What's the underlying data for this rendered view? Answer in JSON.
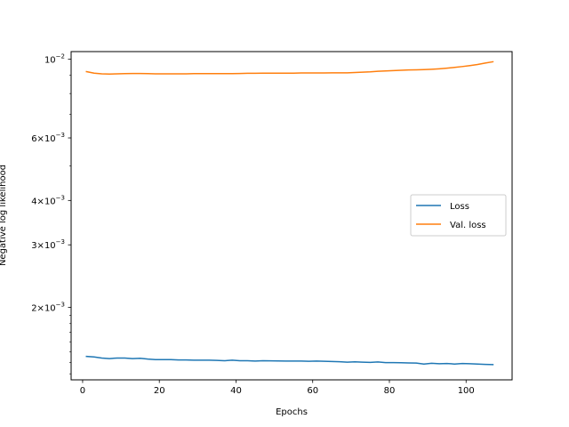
{
  "chart_data": {
    "type": "line",
    "title": "",
    "xlabel": "Epochs",
    "ylabel": "Negative log likelihood",
    "yscale": "log",
    "xlim": [
      -3,
      112
    ],
    "ylim": [
      0.00125,
      0.0105
    ],
    "grid": false,
    "legend_position": "center-right",
    "x_ticks": [
      0,
      20,
      40,
      60,
      80,
      100
    ],
    "x_tick_labels": [
      "0",
      "20",
      "40",
      "60",
      "80",
      "100"
    ],
    "y_ticks": [
      0.01,
      0.006,
      0.004,
      0.003,
      0.002
    ],
    "y_tick_labels": [
      {
        "base": "10",
        "exp": "−2"
      },
      {
        "mant": "6",
        "base": "10",
        "exp": "−3"
      },
      {
        "mant": "4",
        "base": "10",
        "exp": "−3"
      },
      {
        "mant": "3",
        "base": "10",
        "exp": "−3"
      },
      {
        "mant": "2",
        "base": "10",
        "exp": "−3"
      }
    ],
    "series": [
      {
        "name": "Loss",
        "color": "#1f77b4",
        "x": [
          1,
          3,
          5,
          7,
          9,
          11,
          13,
          15,
          17,
          19,
          21,
          23,
          25,
          27,
          29,
          31,
          33,
          35,
          37,
          39,
          41,
          43,
          45,
          47,
          49,
          51,
          53,
          55,
          57,
          59,
          61,
          63,
          65,
          67,
          69,
          71,
          73,
          75,
          77,
          79,
          81,
          83,
          85,
          87,
          89,
          91,
          93,
          95,
          97,
          99,
          101,
          103,
          105,
          107
        ],
        "values": [
          0.001455,
          0.00145,
          0.00144,
          0.001435,
          0.00144,
          0.00144,
          0.001435,
          0.001438,
          0.00143,
          0.001425,
          0.001425,
          0.001425,
          0.001422,
          0.001422,
          0.00142,
          0.00142,
          0.00142,
          0.001418,
          0.001415,
          0.00142,
          0.001415,
          0.001415,
          0.001412,
          0.001415,
          0.001414,
          0.001413,
          0.001412,
          0.001412,
          0.001412,
          0.00141,
          0.001412,
          0.00141,
          0.001408,
          0.001406,
          0.001402,
          0.001405,
          0.001402,
          0.0014,
          0.001404,
          0.001398,
          0.001398,
          0.001397,
          0.001395,
          0.001394,
          0.001385,
          0.001392,
          0.001388,
          0.00139,
          0.001385,
          0.00139,
          0.001388,
          0.001385,
          0.001382,
          0.00138
        ]
      },
      {
        "name": "Val. loss",
        "color": "#ff7f0e",
        "x": [
          1,
          3,
          5,
          7,
          9,
          11,
          13,
          15,
          17,
          19,
          21,
          23,
          25,
          27,
          29,
          31,
          33,
          35,
          37,
          39,
          41,
          43,
          45,
          47,
          49,
          51,
          53,
          55,
          57,
          59,
          61,
          63,
          65,
          67,
          69,
          71,
          73,
          75,
          77,
          79,
          81,
          83,
          85,
          87,
          89,
          91,
          93,
          95,
          97,
          99,
          101,
          103,
          105,
          107
        ],
        "values": [
          0.00922,
          0.00913,
          0.00909,
          0.00908,
          0.00909,
          0.0091,
          0.00911,
          0.00911,
          0.0091,
          0.00909,
          0.00909,
          0.00909,
          0.00909,
          0.00909,
          0.0091,
          0.0091,
          0.0091,
          0.0091,
          0.0091,
          0.0091,
          0.00911,
          0.00912,
          0.00912,
          0.00913,
          0.00913,
          0.00913,
          0.00913,
          0.00913,
          0.00914,
          0.00914,
          0.00914,
          0.00914,
          0.00915,
          0.00915,
          0.00915,
          0.00917,
          0.00919,
          0.00921,
          0.00924,
          0.00926,
          0.00928,
          0.0093,
          0.00932,
          0.00933,
          0.00934,
          0.00936,
          0.00939,
          0.00943,
          0.00948,
          0.00953,
          0.00959,
          0.00966,
          0.00975,
          0.00983
        ]
      }
    ]
  }
}
